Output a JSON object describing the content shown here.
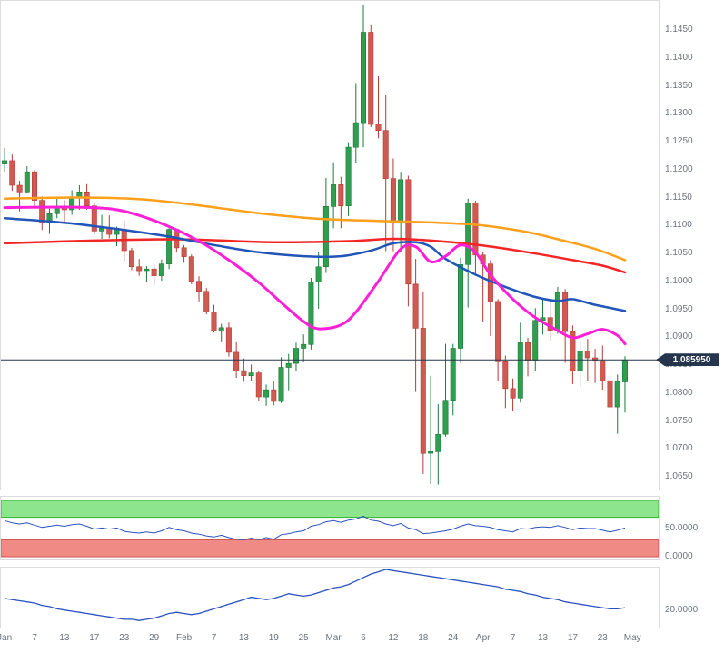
{
  "chart_data": {
    "type": "candlestick",
    "x_axis": {
      "labels": [
        "Jan",
        "7",
        "13",
        "17",
        "23",
        "29",
        "Feb",
        "7",
        "13",
        "19",
        "25",
        "Mar",
        "6",
        "12",
        "18",
        "24",
        "Apr",
        "7",
        "13",
        "17",
        "23",
        "May"
      ],
      "slots": [
        0,
        4,
        8,
        12,
        16,
        20,
        24,
        28,
        32,
        36,
        40,
        44,
        48,
        52,
        56,
        60,
        64,
        68,
        72,
        76,
        80,
        84
      ],
      "total_slots": 88
    },
    "price_panel": {
      "axis_max": 1.145,
      "axis_min": 1.065,
      "y_ticks": [
        "1.1450",
        "1.1400",
        "1.1350",
        "1.1300",
        "1.1250",
        "1.1200",
        "1.1150",
        "1.1100",
        "1.1050",
        "1.1000",
        "1.0950",
        "1.0900",
        "1.0850",
        "1.0800",
        "1.0750",
        "1.0700",
        "1.0650"
      ],
      "current_price": "1.085950",
      "current_price_line_color": "#24354d",
      "candle_up_color": "#2f9e4f",
      "candle_up_border": "#1c7a39",
      "candle_down_color": "#d05a52",
      "candle_down_border": "#b23b34",
      "candles": [
        [
          1.121,
          1.1239,
          1.1196,
          1.1216
        ],
        [
          1.1216,
          1.1227,
          1.1162,
          1.1172
        ],
        [
          1.1172,
          1.118,
          1.1125,
          1.116
        ],
        [
          1.116,
          1.1206,
          1.1158,
          1.1196
        ],
        [
          1.1196,
          1.1199,
          1.1134,
          1.1145
        ],
        [
          1.1145,
          1.1152,
          1.1092,
          1.1106
        ],
        [
          1.1106,
          1.113,
          1.1085,
          1.1121
        ],
        [
          1.1121,
          1.1148,
          1.1113,
          1.1134
        ],
        [
          1.1134,
          1.1145,
          1.1105,
          1.1128
        ],
        [
          1.1128,
          1.1163,
          1.1119,
          1.115
        ],
        [
          1.115,
          1.1172,
          1.1128,
          1.116
        ],
        [
          1.116,
          1.1174,
          1.1128,
          1.1135
        ],
        [
          1.1135,
          1.1141,
          1.1085,
          1.109
        ],
        [
          1.109,
          1.1119,
          1.1076,
          1.1095
        ],
        [
          1.1095,
          1.1118,
          1.1077,
          1.1084
        ],
        [
          1.1084,
          1.1098,
          1.1063,
          1.1093
        ],
        [
          1.1093,
          1.1109,
          1.1036,
          1.1055
        ],
        [
          1.1055,
          1.106,
          1.102,
          1.1026
        ],
        [
          1.1026,
          1.104,
          1.101,
          1.1019
        ],
        [
          1.1019,
          1.1027,
          1.0998,
          1.1022
        ],
        [
          1.1022,
          1.103,
          1.0992,
          1.101
        ],
        [
          1.101,
          1.1039,
          1.1001,
          1.1031
        ],
        [
          1.1031,
          1.1095,
          1.1022,
          1.1093
        ],
        [
          1.1093,
          1.1094,
          1.1052,
          1.106
        ],
        [
          1.106,
          1.1065,
          1.1033,
          1.1044
        ],
        [
          1.1044,
          1.1048,
          1.0995,
          1.1
        ],
        [
          1.1,
          1.1009,
          1.0964,
          1.0982
        ],
        [
          1.0982,
          1.0988,
          1.0941,
          1.0945
        ],
        [
          1.0945,
          1.0958,
          1.0908,
          1.0911
        ],
        [
          1.0911,
          1.0924,
          1.0891,
          1.0917
        ],
        [
          1.0917,
          1.0926,
          1.0865,
          1.0873
        ],
        [
          1.0873,
          1.0891,
          1.0827,
          1.084
        ],
        [
          1.084,
          1.0862,
          1.082,
          1.0831
        ],
        [
          1.0831,
          1.0851,
          1.0821,
          1.0836
        ],
        [
          1.0836,
          1.0839,
          1.0786,
          1.0793
        ],
        [
          1.0793,
          1.0815,
          1.0777,
          1.0806
        ],
        [
          1.0806,
          1.0821,
          1.0778,
          1.0785
        ],
        [
          1.0785,
          1.0864,
          1.0782,
          1.0846
        ],
        [
          1.0846,
          1.087,
          1.0805,
          1.0853
        ],
        [
          1.0853,
          1.089,
          1.084,
          1.088
        ],
        [
          1.088,
          1.0905,
          1.0855,
          1.0887
        ],
        [
          1.0887,
          1.1006,
          1.0878,
          1.0999
        ],
        [
          1.0999,
          1.1053,
          1.0951,
          1.1026
        ],
        [
          1.1026,
          1.1185,
          1.1015,
          1.1134
        ],
        [
          1.1134,
          1.1213,
          1.1095,
          1.1173
        ],
        [
          1.1173,
          1.1187,
          1.1095,
          1.1135
        ],
        [
          1.1135,
          1.1249,
          1.1117,
          1.124
        ],
        [
          1.124,
          1.1355,
          1.1212,
          1.1284
        ],
        [
          1.1284,
          1.1495,
          1.124,
          1.1446
        ],
        [
          1.1446,
          1.146,
          1.1276,
          1.1281
        ],
        [
          1.1281,
          1.1367,
          1.1256,
          1.127
        ],
        [
          1.127,
          1.1333,
          1.1054,
          1.1184
        ],
        [
          1.1184,
          1.122,
          1.1054,
          1.1105
        ],
        [
          1.1105,
          1.1196,
          1.1052,
          1.1182
        ],
        [
          1.1182,
          1.1189,
          1.0955,
          1.0995
        ],
        [
          1.0995,
          1.104,
          1.0802,
          1.0916
        ],
        [
          1.0916,
          1.0982,
          1.0655,
          1.0692
        ],
        [
          1.0692,
          1.0831,
          1.0637,
          1.0695
        ],
        [
          1.0695,
          1.078,
          1.0636,
          1.0726
        ],
        [
          1.0726,
          1.0888,
          1.0722,
          1.0787
        ],
        [
          1.0787,
          1.0888,
          1.076,
          1.088
        ],
        [
          1.088,
          1.1042,
          1.0854,
          1.103
        ],
        [
          1.103,
          1.1148,
          1.0953,
          1.114
        ],
        [
          1.114,
          1.1144,
          1.1013,
          1.1047
        ],
        [
          1.1047,
          1.1053,
          1.0927,
          1.1031
        ],
        [
          1.1031,
          1.1038,
          1.0902,
          1.0964
        ],
        [
          1.0964,
          1.0968,
          1.0822,
          1.0856
        ],
        [
          1.0856,
          1.0867,
          1.0773,
          1.0808
        ],
        [
          1.0808,
          1.0826,
          1.0768,
          1.0791
        ],
        [
          1.0791,
          1.0926,
          1.0783,
          1.089
        ],
        [
          1.089,
          1.0899,
          1.083,
          1.0858
        ],
        [
          1.0858,
          1.0952,
          1.084,
          1.093
        ],
        [
          1.093,
          1.0968,
          1.0905,
          1.0935
        ],
        [
          1.0935,
          1.0965,
          1.0894,
          1.0912
        ],
        [
          1.0912,
          1.099,
          1.0906,
          1.098
        ],
        [
          1.098,
          1.0986,
          1.0854,
          1.091
        ],
        [
          1.091,
          1.0921,
          1.0816,
          1.084
        ],
        [
          1.084,
          1.0892,
          1.0811,
          1.0875
        ],
        [
          1.0875,
          1.0897,
          1.0822,
          1.0863
        ],
        [
          1.0863,
          1.0879,
          1.0818,
          1.0858
        ],
        [
          1.0858,
          1.0885,
          1.0806,
          1.0822
        ],
        [
          1.0822,
          1.0846,
          1.0756,
          1.0775
        ],
        [
          1.0775,
          1.0833,
          1.0727,
          1.082
        ],
        [
          1.082,
          1.0866,
          1.0765,
          1.08595
        ]
      ],
      "moving_averages": [
        {
          "name": "ma-slow-orange",
          "color": "#ff9f1a",
          "width": 2.5,
          "points": [
            [
              0,
              1.1148
            ],
            [
              10,
              1.115
            ],
            [
              18,
              1.1147
            ],
            [
              26,
              1.1136
            ],
            [
              34,
              1.1122
            ],
            [
              42,
              1.1112
            ],
            [
              50,
              1.1108
            ],
            [
              58,
              1.1105
            ],
            [
              64,
              1.11
            ],
            [
              70,
              1.1088
            ],
            [
              75,
              1.1072
            ],
            [
              79,
              1.1058
            ],
            [
              83,
              1.1038
            ]
          ]
        },
        {
          "name": "ma-long-red",
          "color": "#f42525",
          "width": 2.5,
          "points": [
            [
              0,
              1.1068
            ],
            [
              12,
              1.1073
            ],
            [
              24,
              1.1075
            ],
            [
              36,
              1.107
            ],
            [
              46,
              1.1072
            ],
            [
              52,
              1.1076
            ],
            [
              58,
              1.1072
            ],
            [
              64,
              1.1064
            ],
            [
              70,
              1.1052
            ],
            [
              76,
              1.1038
            ],
            [
              80,
              1.1028
            ],
            [
              83,
              1.1016
            ]
          ]
        },
        {
          "name": "ma-mid-blue",
          "color": "#2155b8",
          "width": 2.5,
          "points": [
            [
              0,
              1.1113
            ],
            [
              8,
              1.1105
            ],
            [
              16,
              1.1092
            ],
            [
              22,
              1.108
            ],
            [
              28,
              1.1065
            ],
            [
              34,
              1.1052
            ],
            [
              40,
              1.1045
            ],
            [
              45,
              1.1045
            ],
            [
              49,
              1.1055
            ],
            [
              52,
              1.1068
            ],
            [
              55,
              1.107
            ],
            [
              57,
              1.1062
            ],
            [
              59,
              1.104
            ],
            [
              63,
              1.1012
            ],
            [
              67,
              1.099
            ],
            [
              71,
              1.0972
            ],
            [
              74,
              1.0965
            ],
            [
              76,
              1.0968
            ],
            [
              79,
              1.0958
            ],
            [
              83,
              1.0947
            ]
          ]
        },
        {
          "name": "ma-fast-magenta",
          "color": "#ff1fd6",
          "width": 3,
          "points": [
            [
              0,
              1.1132
            ],
            [
              8,
              1.1133
            ],
            [
              14,
              1.113
            ],
            [
              18,
              1.1118
            ],
            [
              22,
              1.1098
            ],
            [
              26,
              1.1072
            ],
            [
              30,
              1.1038
            ],
            [
              34,
              1.0998
            ],
            [
              37,
              1.0962
            ],
            [
              40,
              1.0928
            ],
            [
              42,
              1.0915
            ],
            [
              45,
              1.0922
            ],
            [
              47,
              1.0945
            ],
            [
              50,
              1.1
            ],
            [
              53,
              1.1058
            ],
            [
              55,
              1.1062
            ],
            [
              57,
              1.1035
            ],
            [
              59,
              1.1045
            ],
            [
              61,
              1.1065
            ],
            [
              63,
              1.1052
            ],
            [
              65,
              1.1012
            ],
            [
              68,
              1.0968
            ],
            [
              71,
              1.0935
            ],
            [
              74,
              1.0912
            ],
            [
              76,
              1.0899
            ],
            [
              78,
              1.0906
            ],
            [
              80,
              1.0914
            ],
            [
              82,
              1.0903
            ],
            [
              83,
              1.0888
            ]
          ]
        }
      ]
    },
    "oscillator_panel": {
      "type": "line",
      "axis_max": 100,
      "axis_min": 0,
      "zones": [
        {
          "name": "overbought-zone",
          "from": 70,
          "to": 100,
          "fill": "#8de68d",
          "border": "#35b435"
        },
        {
          "name": "oversold-zone",
          "from": 0,
          "to": 30,
          "fill": "#f08a84",
          "border": "#cc5650"
        }
      ],
      "y_ticks": [
        {
          "label": "50.0000",
          "value": 50
        },
        {
          "label": "0.0000",
          "value": 0
        }
      ],
      "line_color": "#2a52be",
      "values": [
        64,
        60,
        58,
        60,
        56,
        52,
        54,
        56,
        54,
        57,
        58,
        54,
        49,
        51,
        49,
        51,
        45,
        43,
        42,
        44,
        42,
        46,
        52,
        48,
        46,
        42,
        40,
        37,
        35,
        38,
        34,
        31,
        30,
        33,
        30,
        34,
        31,
        39,
        41,
        44,
        46,
        54,
        57,
        62,
        64,
        61,
        65,
        67,
        72,
        65,
        63,
        58,
        55,
        59,
        51,
        48,
        41,
        42,
        44,
        46,
        49,
        54,
        58,
        55,
        54,
        52,
        48,
        46,
        44,
        50,
        49,
        52,
        53,
        52,
        55,
        52,
        48,
        51,
        50,
        50,
        47,
        44,
        47,
        51
      ]
    },
    "trend_panel": {
      "type": "line",
      "axis_max": 55,
      "axis_min": 8,
      "y_ticks": [
        {
          "label": "20.0000",
          "value": 20
        }
      ],
      "line_color": "#2a52be",
      "values": [
        30,
        29,
        28,
        27,
        26,
        24,
        23,
        21,
        20,
        19,
        18,
        17,
        16,
        15,
        14,
        13,
        12,
        12,
        11,
        12,
        13,
        15,
        17,
        18,
        17,
        16,
        17,
        19,
        21,
        23,
        25,
        27,
        29,
        31,
        30,
        29,
        30,
        32,
        34,
        33,
        32,
        33,
        35,
        37,
        39,
        40,
        42,
        45,
        48,
        51,
        53,
        55,
        54,
        53,
        52,
        51,
        50,
        49,
        48,
        47,
        46,
        45,
        44,
        43,
        42,
        41,
        40,
        38,
        37,
        36,
        34,
        33,
        31,
        30,
        29,
        27,
        26,
        25,
        24,
        23,
        22,
        21,
        21,
        22
      ]
    }
  }
}
